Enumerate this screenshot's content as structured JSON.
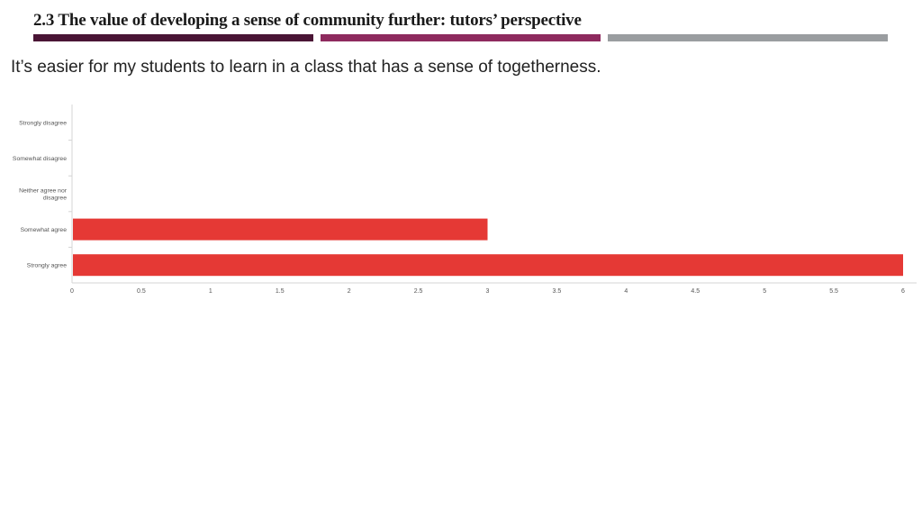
{
  "header": {
    "title": "2.3 The value of developing a sense of community further: tutors’ perspective",
    "accent_colors": [
      "#4a1535",
      "#8e2a5e",
      "#9a9da0"
    ]
  },
  "question": "It’s easier for my students to learn in a class that has a sense of togetherness.",
  "chart_data": {
    "type": "bar",
    "orientation": "horizontal",
    "categories": [
      "Strongly disagree",
      "Somewhat disagree",
      "Neither agree nor disagree",
      "Somewhat agree",
      "Strongly agree"
    ],
    "values": [
      0,
      0,
      0,
      3,
      6
    ],
    "xlim": [
      0,
      6
    ],
    "xticks": [
      "0",
      "0.5",
      "1",
      "1.5",
      "2",
      "2.5",
      "3",
      "3.5",
      "4",
      "4.5",
      "5",
      "5.5",
      "6"
    ],
    "bar_color": "#e53935",
    "grid": false
  }
}
